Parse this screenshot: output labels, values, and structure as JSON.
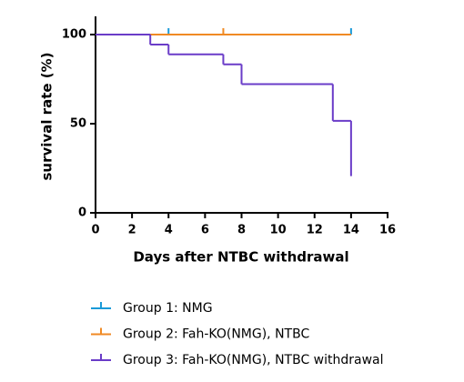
{
  "chart_data": {
    "type": "survival",
    "x_label": "Days after NTBC withdrawal",
    "y_label": "survival rate  (%)",
    "xlim": [
      0,
      16
    ],
    "xticks": [
      0,
      2,
      4,
      6,
      8,
      10,
      12,
      14,
      16
    ],
    "ylim": [
      0,
      110
    ],
    "yticks": [
      0,
      50,
      100
    ],
    "series": [
      {
        "name": "Group 1: NMG",
        "color": "#1a9ad8",
        "x": [
          0,
          14
        ],
        "values": [
          100,
          100
        ],
        "censored": [
          4,
          14
        ]
      },
      {
        "name": "Group 2: Fah-KO(NMG),  NTBC",
        "color": "#f08a24",
        "x": [
          0,
          14
        ],
        "values": [
          100,
          100
        ],
        "censored": [
          7
        ]
      },
      {
        "name": "Group 3: Fah-KO(NMG), NTBC withdrawal",
        "color": "#6a3cc8",
        "x": [
          0,
          3,
          4,
          7,
          8,
          13,
          14
        ],
        "values": [
          100,
          94.4,
          88.9,
          83.3,
          72.2,
          51.6,
          20.6
        ],
        "censored": []
      }
    ]
  }
}
